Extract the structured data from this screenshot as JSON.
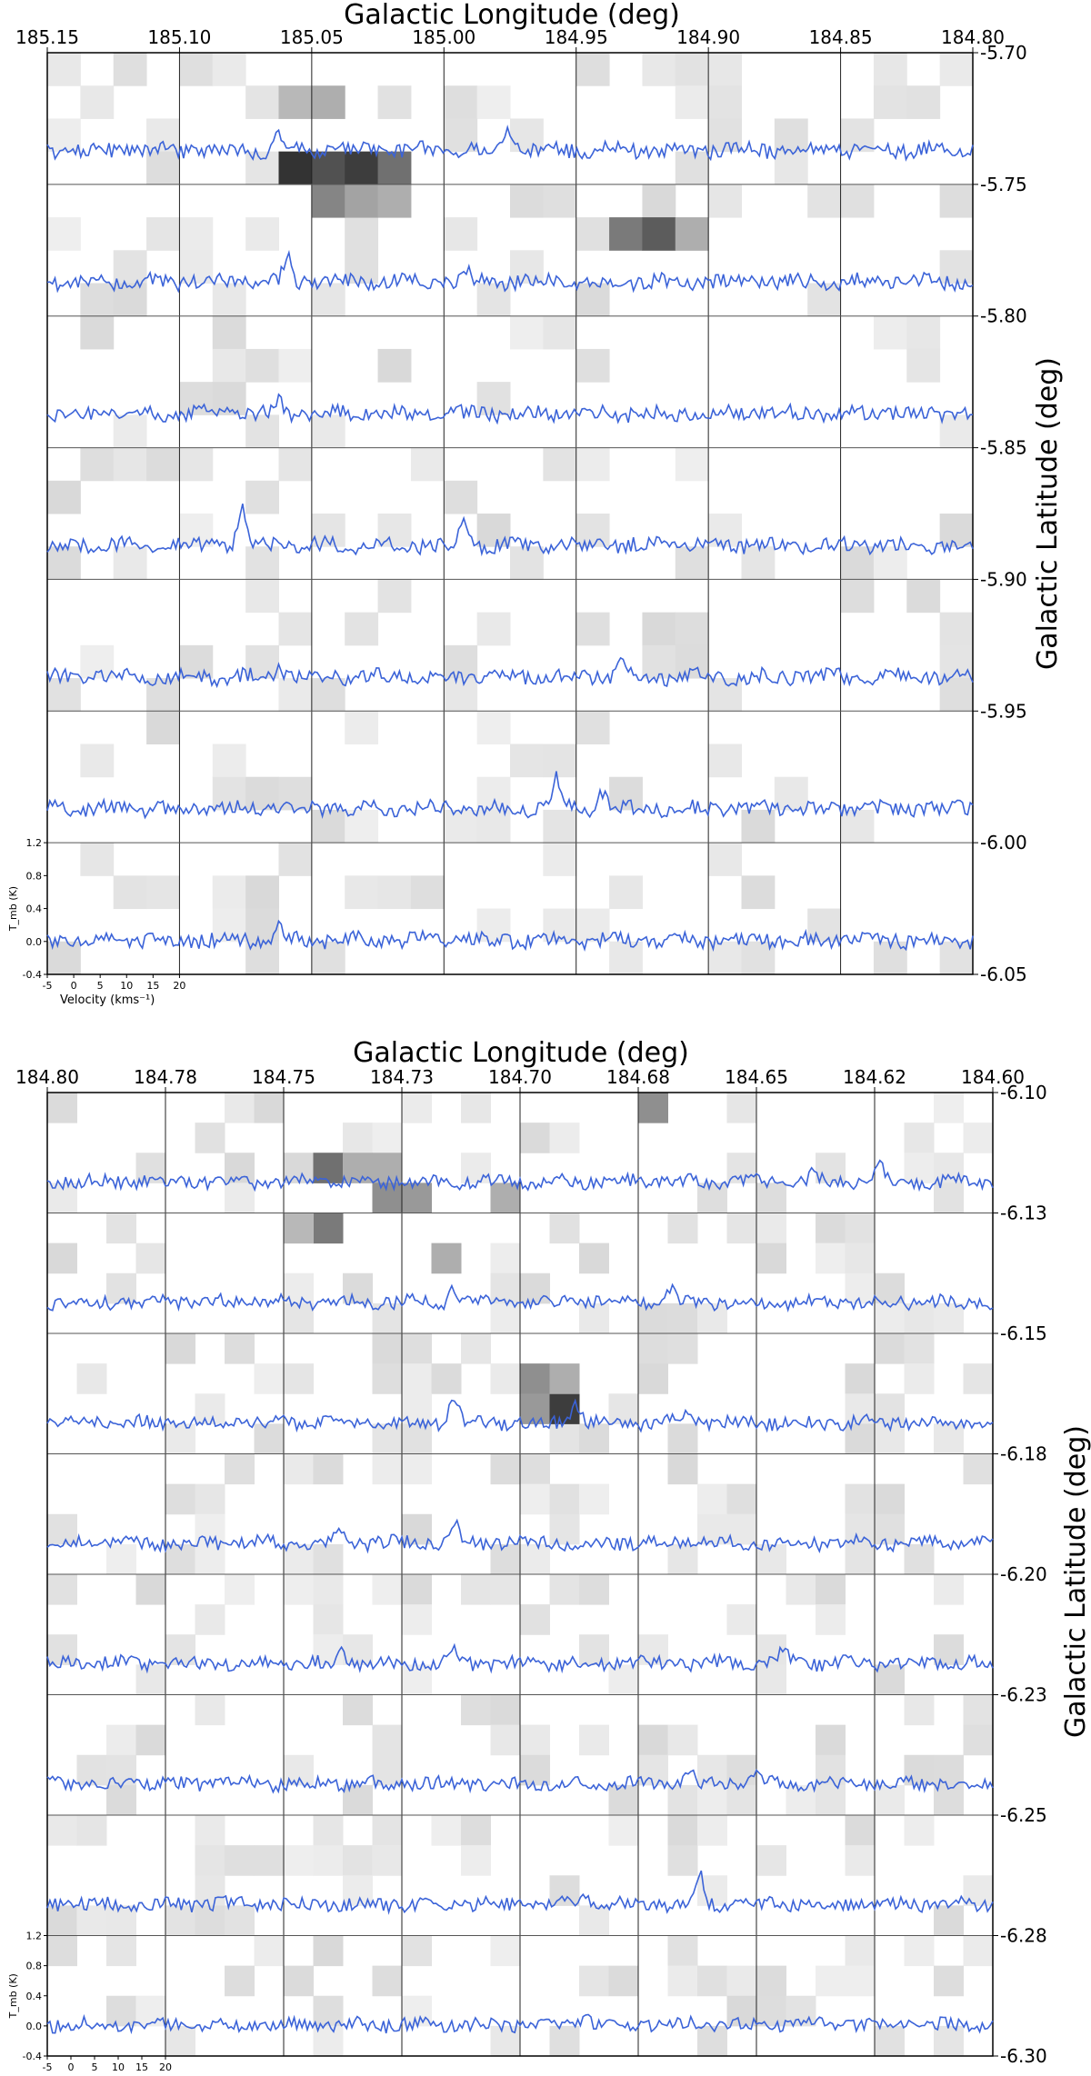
{
  "chart_data": [
    {
      "type": "heatmap",
      "xlabel": "Galactic Longitude (deg)",
      "ylabel": "Galactic Latitude (deg)",
      "x_ticks": [
        "185.15",
        "185.10",
        "185.05",
        "185.00",
        "184.95",
        "184.90",
        "184.85",
        "184.80"
      ],
      "y_ticks": [
        "-5.70",
        "-5.75",
        "-5.80",
        "-5.85",
        "-5.90",
        "-5.95",
        "-6.00",
        "-6.05"
      ],
      "xlim": [
        185.15,
        184.8
      ],
      "ylim": [
        -6.05,
        -5.7
      ],
      "spectra_rows": 7,
      "spectra_cols": 7,
      "inset": {
        "ylabel": "T_mb (K)",
        "yticks": [
          "1.2",
          "0.8",
          "0.4",
          "0.0",
          "-0.4"
        ],
        "xlabel": "Velocity (kms⁻¹)",
        "xticks": [
          "-5",
          "0",
          "5",
          "10",
          "15",
          "20"
        ]
      },
      "line_color": "#3b63d8",
      "emission_peaks": [
        {
          "row": 0,
          "pos": 0.25,
          "height": 0.35
        },
        {
          "row": 0,
          "pos": 0.5,
          "height": 0.5
        },
        {
          "row": 1,
          "pos": 0.26,
          "height": 0.55
        },
        {
          "row": 1,
          "pos": 0.45,
          "height": 0.35
        },
        {
          "row": 2,
          "pos": 0.25,
          "height": 0.25
        },
        {
          "row": 3,
          "pos": 0.21,
          "height": 0.8
        },
        {
          "row": 3,
          "pos": 0.45,
          "height": 0.65
        },
        {
          "row": 4,
          "pos": 0.25,
          "height": 0.25
        },
        {
          "row": 4,
          "pos": 0.62,
          "height": 0.35
        },
        {
          "row": 5,
          "pos": 0.55,
          "height": 0.7
        },
        {
          "row": 5,
          "pos": 0.6,
          "height": 0.35
        },
        {
          "row": 6,
          "pos": 0.25,
          "height": 0.35
        }
      ],
      "heat_cells": [
        {
          "row": 3,
          "c": 7,
          "v": 0.9
        },
        {
          "row": 3,
          "c": 8,
          "v": 0.75
        },
        {
          "row": 3,
          "c": 9,
          "v": 0.85
        },
        {
          "row": 3,
          "c": 10,
          "v": 0.6
        },
        {
          "row": 4,
          "c": 8,
          "v": 0.5
        },
        {
          "row": 4,
          "c": 9,
          "v": 0.35
        },
        {
          "row": 4,
          "c": 10,
          "v": 0.3
        },
        {
          "row": 5,
          "c": 17,
          "v": 0.55
        },
        {
          "row": 5,
          "c": 18,
          "v": 0.7
        },
        {
          "row": 5,
          "c": 19,
          "v": 0.3
        },
        {
          "row": 1,
          "c": 7,
          "v": 0.25
        },
        {
          "row": 1,
          "c": 8,
          "v": 0.3
        }
      ]
    },
    {
      "type": "heatmap",
      "xlabel": "Galactic Longitude (deg)",
      "ylabel": "Galactic Latitude (deg)",
      "x_ticks": [
        "184.80",
        "184.78",
        "184.75",
        "184.73",
        "184.70",
        "184.68",
        "184.65",
        "184.62",
        "184.60"
      ],
      "y_ticks": [
        "-6.10",
        "-6.13",
        "-6.15",
        "-6.18",
        "-6.20",
        "-6.23",
        "-6.25",
        "-6.28",
        "-6.30"
      ],
      "xlim": [
        184.8,
        184.6
      ],
      "ylim": [
        -6.3,
        -6.1
      ],
      "spectra_rows": 8,
      "spectra_cols": 8,
      "inset": {
        "ylabel": "T_mb (K)",
        "yticks": [
          "1.2",
          "0.8",
          "0.4",
          "0.0",
          "-0.4"
        ],
        "xlabel": "Velocity (kms⁻¹)",
        "xticks": [
          "-5",
          "0",
          "5",
          "10",
          "15",
          "20"
        ]
      },
      "line_color": "#3b63d8",
      "emission_peaks": [
        {
          "row": 0,
          "pos": 0.88,
          "height": 0.35
        },
        {
          "row": 0,
          "pos": 0.81,
          "height": 0.25
        },
        {
          "row": 1,
          "pos": 0.43,
          "height": 0.35
        },
        {
          "row": 1,
          "pos": 0.66,
          "height": 0.25
        },
        {
          "row": 2,
          "pos": 0.43,
          "height": 0.65
        },
        {
          "row": 2,
          "pos": 0.56,
          "height": 0.45
        },
        {
          "row": 2,
          "pos": 0.68,
          "height": 0.35
        },
        {
          "row": 3,
          "pos": 0.43,
          "height": 0.5
        },
        {
          "row": 3,
          "pos": 0.31,
          "height": 0.25
        },
        {
          "row": 4,
          "pos": 0.31,
          "height": 0.3
        },
        {
          "row": 4,
          "pos": 0.43,
          "height": 0.3
        },
        {
          "row": 4,
          "pos": 0.78,
          "height": 0.4
        },
        {
          "row": 5,
          "pos": 0.75,
          "height": 0.3
        },
        {
          "row": 5,
          "pos": 0.68,
          "height": 0.25
        },
        {
          "row": 6,
          "pos": 0.69,
          "height": 0.7
        },
        {
          "row": 6,
          "pos": 0.57,
          "height": 0.3
        },
        {
          "row": 7,
          "pos": 0.57,
          "height": 0.3
        }
      ],
      "heat_cells": [
        {
          "row": 2,
          "c": 9,
          "v": 0.6
        },
        {
          "row": 2,
          "c": 10,
          "v": 0.3
        },
        {
          "row": 2,
          "c": 11,
          "v": 0.3
        },
        {
          "row": 3,
          "c": 11,
          "v": 0.45
        },
        {
          "row": 3,
          "c": 12,
          "v": 0.4
        },
        {
          "row": 3,
          "c": 15,
          "v": 0.3
        },
        {
          "row": 4,
          "c": 9,
          "v": 0.55
        },
        {
          "row": 4,
          "c": 8,
          "v": 0.25
        },
        {
          "row": 5,
          "c": 13,
          "v": 0.3
        },
        {
          "row": 0,
          "c": 20,
          "v": 0.45
        },
        {
          "row": 9,
          "c": 16,
          "v": 0.45
        },
        {
          "row": 10,
          "c": 16,
          "v": 0.4
        },
        {
          "row": 10,
          "c": 17,
          "v": 0.85
        },
        {
          "row": 9,
          "c": 17,
          "v": 0.3
        }
      ]
    }
  ]
}
